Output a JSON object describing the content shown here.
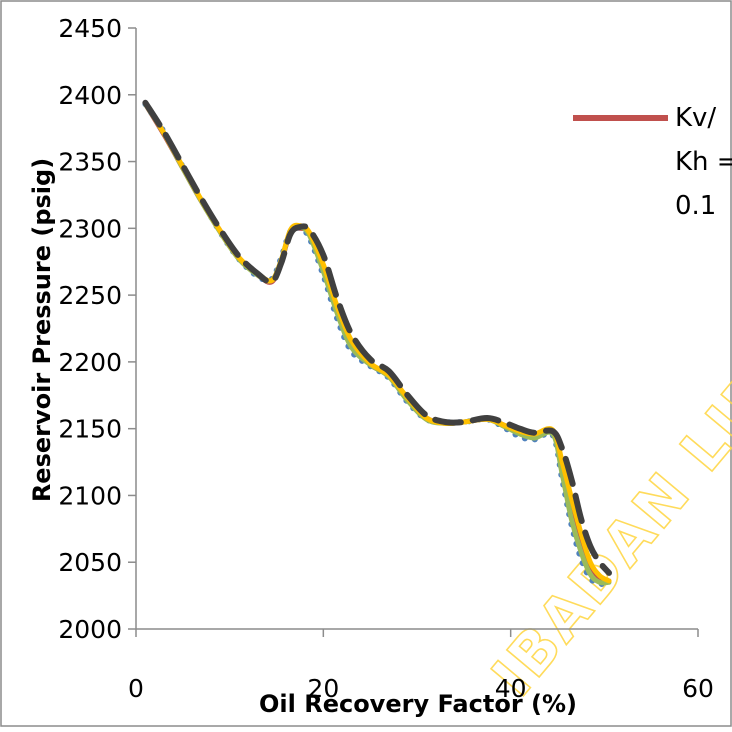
{
  "chart_data": {
    "type": "line",
    "title": "",
    "xlabel": "Oil Recovery Factor (%)",
    "ylabel": "Reservoir Pressure (psig)",
    "xlim": [
      0,
      60
    ],
    "ylim": [
      2000,
      2450
    ],
    "x_ticks": [
      "0",
      "20",
      "40",
      "60"
    ],
    "y_ticks": [
      "2000",
      "2050",
      "2100",
      "2150",
      "2200",
      "2250",
      "2300",
      "2350",
      "2400",
      "2450"
    ],
    "grid": false,
    "legend": {
      "placement": "right",
      "entries": [
        {
          "lines": [
            "Kv/",
            "Kh =",
            "0.1"
          ],
          "color": "#c0504d"
        }
      ]
    },
    "watermark": "IBADAN LIBRARY",
    "series": [
      {
        "name": "Kv/ Kh = 0.1",
        "color": "#c0504d",
        "style": "solid",
        "x": [
          1,
          3,
          5,
          7,
          9,
          11,
          13,
          14.5,
          15.5,
          16.5,
          17.5,
          18.5,
          20,
          21.5,
          23,
          25,
          27,
          29,
          31,
          33,
          35,
          37.5,
          39.5,
          41,
          42.5,
          44.5,
          45.5,
          46.5,
          47.5,
          48.5,
          49.5,
          50.5
        ],
        "y": [
          2393,
          2370,
          2345,
          2320,
          2298,
          2278,
          2265,
          2260,
          2275,
          2297,
          2300,
          2296,
          2272,
          2240,
          2215,
          2198,
          2190,
          2172,
          2158,
          2154,
          2155,
          2157,
          2152,
          2148,
          2145,
          2148,
          2120,
          2090,
          2065,
          2045,
          2038,
          2036
        ]
      },
      {
        "name": "",
        "color": "#4f81bd",
        "style": "dotted",
        "x": [
          1,
          3,
          5,
          7,
          9,
          11,
          13,
          14.5,
          15.5,
          16.5,
          17.5,
          18.5,
          20,
          21.5,
          23,
          25,
          27,
          29,
          31,
          33,
          35,
          37.5,
          39.5,
          41,
          42.5,
          44.5,
          45.5,
          46.5,
          47.5,
          48.5,
          49.5,
          50.5
        ],
        "y": [
          2393,
          2372,
          2346,
          2321,
          2297,
          2277,
          2264,
          2262,
          2278,
          2298,
          2300,
          2293,
          2265,
          2232,
          2208,
          2197,
          2188,
          2170,
          2157,
          2155,
          2155,
          2157,
          2150,
          2144,
          2142,
          2145,
          2112,
          2078,
          2053,
          2038,
          2034,
          2034
        ]
      },
      {
        "name": "",
        "color": "#9bbb59",
        "style": "solid",
        "x": [
          1,
          3,
          5,
          7,
          9,
          11,
          13,
          14.5,
          15.5,
          16.5,
          17.5,
          18.5,
          20,
          21.5,
          23,
          25,
          27,
          29,
          31,
          33,
          35,
          37.5,
          39.5,
          41,
          42.5,
          44.5,
          45.5,
          46.5,
          47.5,
          48.5,
          49.5,
          50.5
        ],
        "y": [
          2393,
          2371,
          2345,
          2320,
          2297,
          2277,
          2265,
          2261,
          2276,
          2298,
          2301,
          2295,
          2268,
          2236,
          2211,
          2198,
          2189,
          2171,
          2157,
          2154,
          2155,
          2157,
          2151,
          2146,
          2143,
          2146,
          2116,
          2082,
          2058,
          2041,
          2035,
          2035
        ]
      },
      {
        "name": "",
        "color": "#ffc000",
        "style": "solid",
        "x": [
          1,
          3,
          5,
          7,
          9,
          11,
          13,
          14.5,
          15.5,
          16.5,
          17.5,
          18.5,
          20,
          21.5,
          23,
          25,
          27,
          29,
          31,
          33,
          35,
          37.5,
          39.5,
          41,
          42.5,
          44.5,
          45.5,
          46.5,
          47.5,
          48.5,
          49.5,
          50.5
        ],
        "y": [
          2394,
          2371,
          2346,
          2321,
          2298,
          2278,
          2266,
          2261,
          2276,
          2299,
          2302,
          2297,
          2273,
          2241,
          2216,
          2199,
          2190,
          2173,
          2158,
          2154,
          2155,
          2157,
          2152,
          2148,
          2146,
          2149,
          2125,
          2098,
          2072,
          2050,
          2040,
          2036
        ]
      },
      {
        "name": "",
        "color": "#404040",
        "style": "dashed",
        "x": [
          1,
          3,
          5,
          7,
          9,
          11,
          13,
          14.5,
          15.5,
          16.5,
          17.5,
          18.5,
          20,
          21.5,
          23,
          25,
          27,
          29,
          31,
          33,
          35,
          37.5,
          39.5,
          41,
          42.5,
          44.5,
          45.5,
          46.5,
          47.5,
          48.5,
          49.5,
          50.5
        ],
        "y": [
          2394,
          2372,
          2347,
          2322,
          2299,
          2279,
          2266,
          2260,
          2274,
          2296,
          2301,
          2299,
          2280,
          2247,
          2221,
          2202,
          2193,
          2175,
          2160,
          2155,
          2155,
          2158,
          2154,
          2150,
          2147,
          2148,
          2135,
          2112,
          2083,
          2062,
          2050,
          2042
        ]
      }
    ]
  }
}
